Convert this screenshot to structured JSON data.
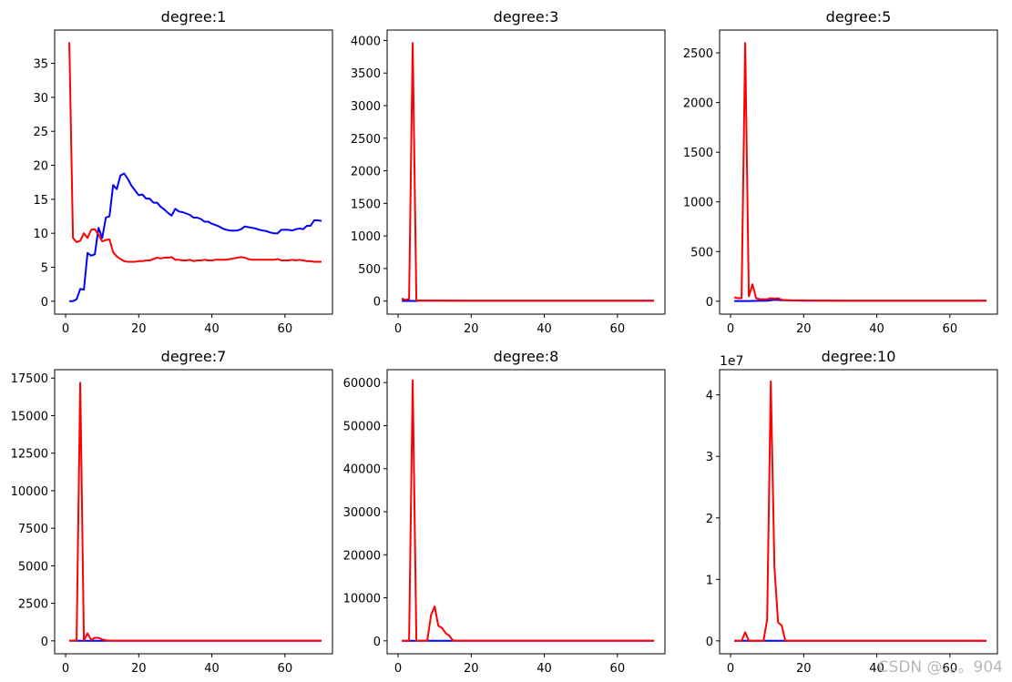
{
  "chart_data": [
    {
      "type": "line",
      "title": "degree:1",
      "xlim": [
        -3,
        73
      ],
      "ylim": [
        -1.9,
        39.9
      ],
      "xticks": [
        0,
        20,
        40,
        60
      ],
      "yticks": [
        0,
        5,
        10,
        15,
        20,
        25,
        30,
        35
      ],
      "offset_text": "",
      "series": [
        {
          "color": "#0000ff",
          "x": [
            1,
            2,
            3,
            4,
            5,
            6,
            7,
            8,
            9,
            10,
            11,
            12,
            13,
            14,
            15,
            16,
            17,
            18,
            19,
            20,
            21,
            22,
            23,
            24,
            25,
            26,
            27,
            28,
            29,
            30,
            31,
            32,
            33,
            34,
            35,
            36,
            37,
            38,
            39,
            40,
            41,
            42,
            43,
            44,
            45,
            46,
            47,
            48,
            49,
            50,
            51,
            52,
            53,
            54,
            55,
            56,
            57,
            58,
            59,
            60,
            61,
            62,
            63,
            64,
            65,
            66,
            67,
            68,
            69,
            70
          ],
          "y": [
            0,
            0,
            0.3,
            1.8,
            1.7,
            7.1,
            6.7,
            6.9,
            10.8,
            9.3,
            12.3,
            12.5,
            17.1,
            16.5,
            18.5,
            18.8,
            18,
            17,
            16.3,
            15.6,
            15.7,
            15.1,
            15.1,
            14.5,
            14.5,
            13.9,
            13.5,
            13,
            12.6,
            13.6,
            13.2,
            13.1,
            12.9,
            12.7,
            12.3,
            12.3,
            12.1,
            11.7,
            11.7,
            11.4,
            11.2,
            11,
            10.7,
            10.5,
            10.4,
            10.4,
            10.4,
            10.6,
            11,
            10.9,
            10.8,
            10.7,
            10.5,
            10.4,
            10.3,
            10.1,
            10,
            10,
            10.5,
            10.5,
            10.5,
            10.4,
            10.6,
            10.7,
            10.6,
            11.1,
            11.1,
            11.9,
            11.9,
            11.8
          ]
        },
        {
          "color": "#ff0000",
          "x": [
            1,
            2,
            3,
            4,
            5,
            6,
            7,
            8,
            9,
            10,
            11,
            12,
            13,
            14,
            15,
            16,
            17,
            18,
            19,
            20,
            21,
            22,
            23,
            24,
            25,
            26,
            27,
            28,
            29,
            30,
            31,
            32,
            33,
            34,
            35,
            36,
            37,
            38,
            39,
            40,
            41,
            42,
            43,
            44,
            45,
            46,
            47,
            48,
            49,
            50,
            51,
            52,
            53,
            54,
            55,
            56,
            57,
            58,
            59,
            60,
            61,
            62,
            63,
            64,
            65,
            66,
            67,
            68,
            69,
            70
          ],
          "y": [
            38.1,
            9.3,
            8.7,
            8.9,
            10,
            9.3,
            10.5,
            10.6,
            9.8,
            8.8,
            9,
            9.1,
            7.2,
            6.6,
            6.2,
            5.9,
            5.8,
            5.8,
            5.8,
            5.9,
            5.9,
            6,
            6,
            6.2,
            6.4,
            6.3,
            6.4,
            6.4,
            6.5,
            6.1,
            6.1,
            6,
            6,
            6.1,
            5.9,
            6,
            6,
            6.1,
            6,
            6,
            6.1,
            6.1,
            6.1,
            6.1,
            6.2,
            6.3,
            6.4,
            6.5,
            6.4,
            6.2,
            6.1,
            6.1,
            6.1,
            6.1,
            6.1,
            6.1,
            6.1,
            6.2,
            6,
            6,
            6,
            6.1,
            6,
            6.1,
            6,
            5.9,
            5.9,
            5.8,
            5.8,
            5.8
          ]
        }
      ]
    },
    {
      "type": "line",
      "title": "degree:3",
      "xlim": [
        -3,
        73
      ],
      "ylim": [
        -200,
        4160
      ],
      "xticks": [
        0,
        20,
        40,
        60
      ],
      "yticks": [
        0,
        500,
        1000,
        1500,
        2000,
        2500,
        3000,
        3500,
        4000
      ],
      "offset_text": "",
      "series": [
        {
          "color": "#0000ff",
          "x": [
            1,
            2,
            3,
            4,
            5,
            6,
            10,
            20,
            30,
            40,
            50,
            60,
            70
          ],
          "y": [
            2,
            2,
            2,
            3,
            2,
            5,
            5,
            5,
            5,
            5,
            5,
            5,
            5
          ]
        },
        {
          "color": "#ff0000",
          "x": [
            1,
            2,
            3,
            4,
            5,
            6,
            10,
            20,
            30,
            40,
            50,
            60,
            70
          ],
          "y": [
            40,
            20,
            30,
            3960,
            10,
            10,
            8,
            6,
            6,
            6,
            6,
            6,
            6
          ]
        }
      ]
    },
    {
      "type": "line",
      "title": "degree:5",
      "xlim": [
        -3,
        73
      ],
      "ylim": [
        -130,
        2730
      ],
      "xticks": [
        0,
        20,
        40,
        60
      ],
      "yticks": [
        0,
        500,
        1000,
        1500,
        2000,
        2500
      ],
      "offset_text": "",
      "series": [
        {
          "color": "#0000ff",
          "x": [
            1,
            2,
            3,
            4,
            5,
            6,
            8,
            10,
            12,
            14,
            16,
            20,
            30,
            40,
            50,
            60,
            70
          ],
          "y": [
            2,
            2,
            2,
            2,
            2,
            3,
            4,
            6,
            15,
            10,
            8,
            6,
            6,
            6,
            6,
            6,
            6
          ]
        },
        {
          "color": "#ff0000",
          "x": [
            1,
            2,
            3,
            4,
            5,
            6,
            7,
            8,
            10,
            11,
            12,
            13,
            14,
            16,
            20,
            30,
            40,
            50,
            60,
            70
          ],
          "y": [
            40,
            30,
            30,
            2600,
            50,
            170,
            30,
            20,
            20,
            30,
            25,
            30,
            15,
            10,
            8,
            6,
            6,
            6,
            6,
            6
          ]
        }
      ]
    },
    {
      "type": "line",
      "title": "degree:7",
      "xlim": [
        -3,
        73
      ],
      "ylim": [
        -860,
        18060
      ],
      "xticks": [
        0,
        20,
        40,
        60
      ],
      "yticks": [
        0,
        2500,
        5000,
        7500,
        10000,
        12500,
        15000,
        17500
      ],
      "offset_text": "",
      "series": [
        {
          "color": "#0000ff",
          "x": [
            1,
            20,
            40,
            60,
            70
          ],
          "y": [
            5,
            5,
            5,
            5,
            5
          ]
        },
        {
          "color": "#ff0000",
          "x": [
            1,
            2,
            3,
            4,
            5,
            6,
            7,
            8,
            9,
            10,
            11,
            12,
            14,
            20,
            30,
            40,
            50,
            60,
            70
          ],
          "y": [
            20,
            20,
            30,
            17200,
            20,
            500,
            60,
            200,
            200,
            100,
            40,
            20,
            15,
            15,
            15,
            15,
            15,
            15,
            15
          ]
        }
      ]
    },
    {
      "type": "line",
      "title": "degree:8",
      "xlim": [
        -3,
        73
      ],
      "ylim": [
        -3000,
        63000
      ],
      "xticks": [
        0,
        20,
        40,
        60
      ],
      "yticks": [
        0,
        10000,
        20000,
        30000,
        40000,
        50000,
        60000
      ],
      "offset_text": "",
      "series": [
        {
          "color": "#0000ff",
          "x": [
            1,
            20,
            40,
            60,
            70
          ],
          "y": [
            10,
            10,
            10,
            10,
            10
          ]
        },
        {
          "color": "#ff0000",
          "x": [
            1,
            2,
            3,
            4,
            5,
            6,
            7,
            8,
            9,
            10,
            11,
            12,
            13,
            14,
            15,
            16,
            20,
            30,
            40,
            50,
            60,
            70
          ],
          "y": [
            20,
            20,
            30,
            60500,
            50,
            30,
            50,
            100,
            6000,
            8000,
            3500,
            3000,
            1800,
            1200,
            100,
            50,
            50,
            50,
            50,
            50,
            50,
            50
          ]
        }
      ]
    },
    {
      "type": "line",
      "title": "degree:10",
      "xlim": [
        -3,
        73
      ],
      "ylim": [
        -0.21,
        4.41
      ],
      "xticks": [
        0,
        20,
        40,
        60
      ],
      "yticks": [
        0,
        1,
        2,
        3,
        4
      ],
      "offset_text": "1e7",
      "series": [
        {
          "color": "#0000ff",
          "x": [
            1,
            20,
            40,
            60,
            70
          ],
          "y": [
            0.002,
            0.002,
            0.002,
            0.002,
            0.002
          ]
        },
        {
          "color": "#ff0000",
          "x": [
            1,
            2,
            3,
            4,
            5,
            6,
            7,
            8,
            9,
            10,
            11,
            12,
            13,
            14,
            15,
            16,
            20,
            30,
            40,
            50,
            60,
            70
          ],
          "y": [
            0,
            0,
            0,
            0.14,
            0,
            0,
            0,
            0,
            0,
            0.35,
            4.22,
            1.2,
            0.3,
            0.25,
            0,
            0,
            0,
            0,
            0,
            0,
            0,
            0
          ]
        }
      ]
    }
  ],
  "watermark": "CSDN @。。。904"
}
